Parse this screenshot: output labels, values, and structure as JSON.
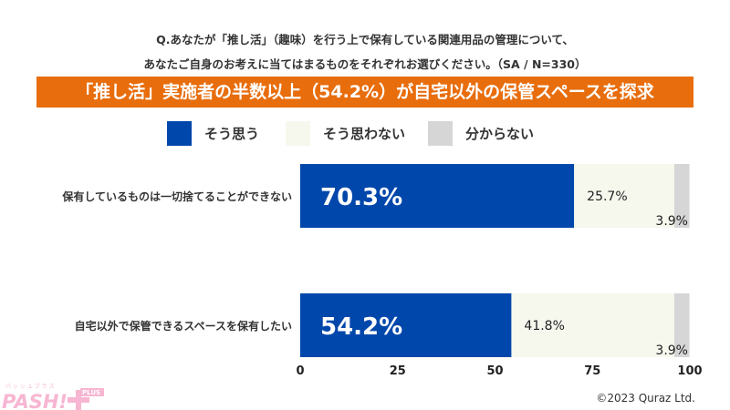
{
  "chart_data": {
    "type": "bar",
    "orientation": "horizontal",
    "stacked": true,
    "question_line1": "Q.あなたが「推し活」（趣味）を行う上で保有している関連用品の管理について、",
    "question_line2": "あなたご自身のお考えに当てはまるものをそれぞれお選びください。（SA / N=330）",
    "title": "「推し活」実施者の半数以上（54.2%）が自宅以外の保管スペースを探求",
    "categories": [
      "保有しているものは一切捨てることができない",
      "自宅以外で保管できるスペースを保有したい"
    ],
    "series": [
      {
        "name": "そう思う",
        "color": "#0047ab",
        "values": [
          70.3,
          54.2
        ],
        "labels": [
          "70.3%",
          "54.2%"
        ]
      },
      {
        "name": "そう思わない",
        "color": "#f6f8ee",
        "values": [
          25.7,
          41.8
        ],
        "labels": [
          "25.7%",
          "41.8%"
        ]
      },
      {
        "name": "分からない",
        "color": "#d6d6d6",
        "values": [
          3.9,
          3.9
        ],
        "labels": [
          "3.9%",
          "3.9%"
        ]
      }
    ],
    "xlim": [
      0,
      100
    ],
    "xticks": [
      "0",
      "25",
      "50",
      "75",
      "100"
    ],
    "legend_position": "top"
  },
  "copyright": "©2023 Quraz Ltd.",
  "logo_text": "PASH! PLUS"
}
